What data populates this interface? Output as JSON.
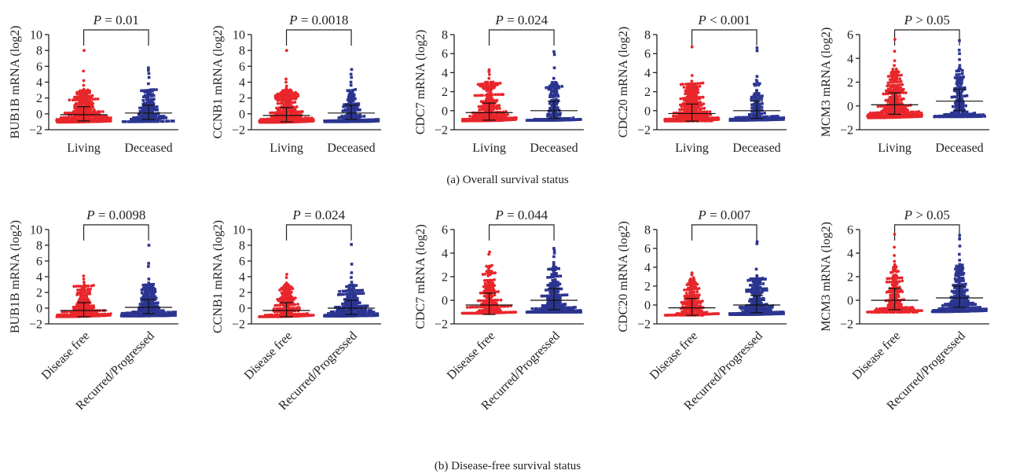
{
  "colors": {
    "group1": "#e8262b",
    "group2": "#2b3590"
  },
  "captions": {
    "top": "(a)  Overall survival status",
    "bottom": "(b)  Disease-free survival status"
  },
  "chart_data": [
    {
      "type": "scatter",
      "row": "a",
      "ylabel": "BUB1B mRNA (log2)",
      "ylim": [
        -2,
        10
      ],
      "yticks": [
        -2,
        0,
        2,
        4,
        6,
        8,
        10
      ],
      "categories": [
        "Living",
        "Deceased"
      ],
      "p_label": "P",
      "p_text": " = 0.01",
      "groups": [
        {
          "n": 300,
          "median": -0.1,
          "max": 8.0,
          "top": [
            8.0,
            5.4,
            4.2,
            3.6,
            3.1
          ]
        },
        {
          "n": 150,
          "median": 0.1,
          "max": 5.8,
          "top": [
            5.8,
            5.5,
            5.1,
            4.6,
            3.8
          ]
        }
      ]
    },
    {
      "type": "scatter",
      "row": "a",
      "ylabel": "CCNB1 mRNA (log2)",
      "ylim": [
        -2,
        10
      ],
      "yticks": [
        -2,
        0,
        2,
        4,
        6,
        8,
        10
      ],
      "categories": [
        "Living",
        "Deceased"
      ],
      "p_label": "P",
      "p_text": " = 0.0018",
      "groups": [
        {
          "n": 300,
          "median": -0.2,
          "max": 8.0,
          "top": [
            8.0,
            4.4,
            4.0,
            3.5,
            3.2
          ]
        },
        {
          "n": 150,
          "median": 0.1,
          "max": 5.6,
          "top": [
            5.6,
            5.0,
            4.6,
            4.0,
            3.6
          ]
        }
      ]
    },
    {
      "type": "scatter",
      "row": "a",
      "ylabel": "CDC7 mRNA (log2)",
      "ylim": [
        -2,
        8
      ],
      "yticks": [
        -2,
        0,
        2,
        4,
        6,
        8
      ],
      "categories": [
        "Living",
        "Deceased"
      ],
      "p_label": "P",
      "p_text": " = 0.024",
      "groups": [
        {
          "n": 300,
          "median": -0.2,
          "max": 4.3,
          "top": [
            4.3,
            4.1,
            3.8,
            3.4,
            3.0
          ]
        },
        {
          "n": 150,
          "median": 0.0,
          "max": 6.2,
          "top": [
            6.2,
            5.9,
            4.5,
            3.4,
            2.9
          ]
        }
      ]
    },
    {
      "type": "scatter",
      "row": "a",
      "ylabel": "CDC20 mRNA (log2)",
      "ylim": [
        -2,
        8
      ],
      "yticks": [
        -2,
        0,
        2,
        4,
        6,
        8
      ],
      "categories": [
        "Living",
        "Deceased"
      ],
      "p_label": "P",
      "p_text": " < 0.001",
      "groups": [
        {
          "n": 300,
          "median": -0.3,
          "max": 6.7,
          "top": [
            6.7,
            3.7,
            3.1,
            2.8,
            2.5
          ]
        },
        {
          "n": 150,
          "median": 0.0,
          "max": 6.6,
          "top": [
            6.6,
            6.3,
            3.6,
            3.2,
            2.8
          ]
        }
      ]
    },
    {
      "type": "scatter",
      "row": "a",
      "ylabel": "MCM3 mRNA (log2)",
      "ylim": [
        -2,
        6
      ],
      "yticks": [
        -2,
        0,
        2,
        4,
        6
      ],
      "categories": [
        "Living",
        "Deceased"
      ],
      "p_label": "P",
      "p_text": " > 0.05",
      "groups": [
        {
          "n": 300,
          "median": 0.1,
          "max": 5.6,
          "top": [
            5.6,
            4.6,
            3.8,
            3.4,
            3.1
          ]
        },
        {
          "n": 150,
          "median": 0.4,
          "max": 5.5,
          "top": [
            5.5,
            4.7,
            4.4,
            3.9,
            3.4
          ]
        }
      ]
    },
    {
      "type": "scatter",
      "row": "b",
      "ylabel": "BUB1B mRNA (log2)",
      "ylim": [
        -2,
        10
      ],
      "yticks": [
        -2,
        0,
        2,
        4,
        6,
        8,
        10
      ],
      "categories": [
        "Disease free",
        "Recurred/Progressed"
      ],
      "p_label": "P",
      "p_text": " = 0.0098",
      "groups": [
        {
          "n": 190,
          "median": -0.3,
          "max": 4.1,
          "top": [
            4.1,
            3.7,
            3.3,
            2.9,
            2.6
          ]
        },
        {
          "n": 230,
          "median": 0.1,
          "max": 8.0,
          "top": [
            8.0,
            5.7,
            5.3,
            3.7,
            3.2
          ]
        }
      ]
    },
    {
      "type": "scatter",
      "row": "b",
      "ylabel": "CCNB1 mRNA (log2)",
      "ylim": [
        -2,
        10
      ],
      "yticks": [
        -2,
        0,
        2,
        4,
        6,
        8,
        10
      ],
      "categories": [
        "Disease free",
        "Recurred/Progressed"
      ],
      "p_label": "P",
      "p_text": " = 0.024",
      "groups": [
        {
          "n": 190,
          "median": -0.3,
          "max": 4.3,
          "top": [
            4.3,
            3.9,
            3.2,
            2.8,
            2.4
          ]
        },
        {
          "n": 230,
          "median": 0.0,
          "max": 8.1,
          "top": [
            8.1,
            5.6,
            4.5,
            3.9,
            3.3
          ]
        }
      ]
    },
    {
      "type": "scatter",
      "row": "b",
      "ylabel": "CDC7 mRNA (log2)",
      "ylim": [
        -2,
        6
      ],
      "yticks": [
        -2,
        0,
        2,
        4,
        6
      ],
      "categories": [
        "Disease free",
        "Recurred/Progressed"
      ],
      "p_label": "P",
      "p_text": " = 0.044",
      "groups": [
        {
          "n": 190,
          "median": -0.4,
          "max": 4.1,
          "top": [
            4.1,
            3.9,
            2.9,
            2.5,
            2.2
          ]
        },
        {
          "n": 230,
          "median": 0.0,
          "max": 4.4,
          "top": [
            4.4,
            4.2,
            4.0,
            3.7,
            3.2
          ]
        }
      ]
    },
    {
      "type": "scatter",
      "row": "b",
      "ylabel": "CDC20 mRNA (log2)",
      "ylim": [
        -2,
        8
      ],
      "yticks": [
        -2,
        0,
        2,
        4,
        6,
        8
      ],
      "categories": [
        "Disease free",
        "Recurred/Progressed"
      ],
      "p_label": "P",
      "p_text": " = 0.007",
      "groups": [
        {
          "n": 190,
          "median": -0.3,
          "max": 3.4,
          "top": [
            3.4,
            3.2,
            2.6,
            2.2,
            1.9
          ]
        },
        {
          "n": 230,
          "median": 0.0,
          "max": 6.7,
          "top": [
            6.7,
            6.5,
            3.8,
            3.1,
            2.7
          ]
        }
      ]
    },
    {
      "type": "scatter",
      "row": "b",
      "ylabel": "MCM3 mRNA (log2)",
      "ylim": [
        -2,
        6
      ],
      "yticks": [
        -2,
        0,
        2,
        4,
        6
      ],
      "categories": [
        "Disease free",
        "Recurred/Progressed"
      ],
      "p_label": "P",
      "p_text": " > 0.05",
      "groups": [
        {
          "n": 190,
          "median": 0.0,
          "max": 5.6,
          "top": [
            5.6,
            4.5,
            3.8,
            3.3,
            2.9
          ]
        },
        {
          "n": 230,
          "median": 0.2,
          "max": 5.5,
          "top": [
            5.5,
            5.2,
            4.6,
            3.9,
            3.4
          ]
        }
      ]
    }
  ]
}
